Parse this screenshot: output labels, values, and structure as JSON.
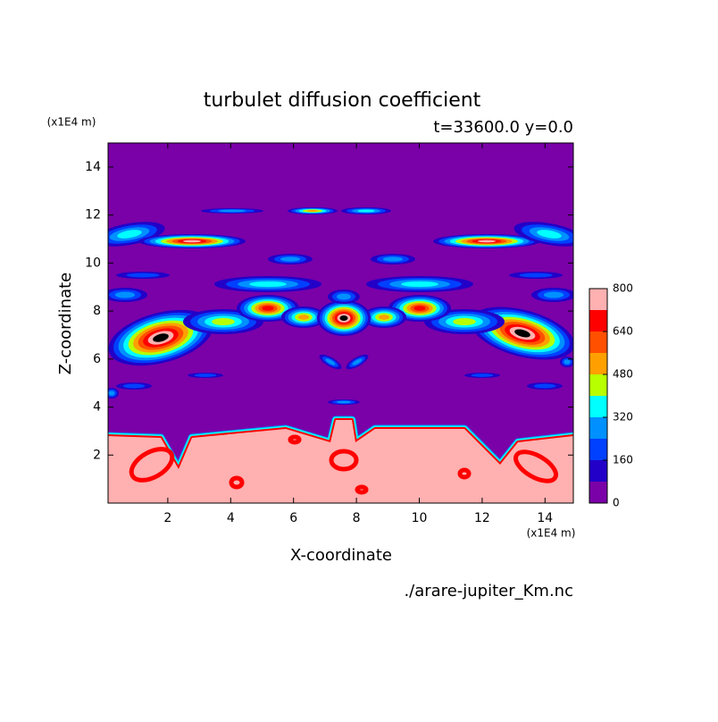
{
  "chart_data": {
    "type": "contour",
    "title": "turbulet diffusion coefficient",
    "subtitle": "t=33600.0 y=0.0",
    "xlabel": "X-coordinate",
    "ylabel": "Z-coordinate",
    "x_unit": "(x1E4 m)",
    "y_unit": "(x1E4 m)",
    "source": "./arare-jupiter_Km.nc",
    "xlim": [
      0.1,
      14.9
    ],
    "ylim": [
      0,
      15
    ],
    "xticks": [
      2,
      4,
      6,
      8,
      10,
      12,
      14
    ],
    "yticks": [
      2,
      4,
      6,
      8,
      10,
      12,
      14
    ],
    "levels": [
      0,
      80,
      160,
      240,
      320,
      400,
      480,
      560,
      640,
      720,
      800
    ],
    "level_colors": [
      "#7a00a8",
      "#2200c8",
      "#0040ff",
      "#0090ff",
      "#00ffff",
      "#b8ff00",
      "#ffa000",
      "#ff5000",
      "#ff0000",
      "#ffb0b0"
    ],
    "colorbar_ticks": [
      0,
      160,
      320,
      480,
      640,
      800
    ]
  }
}
